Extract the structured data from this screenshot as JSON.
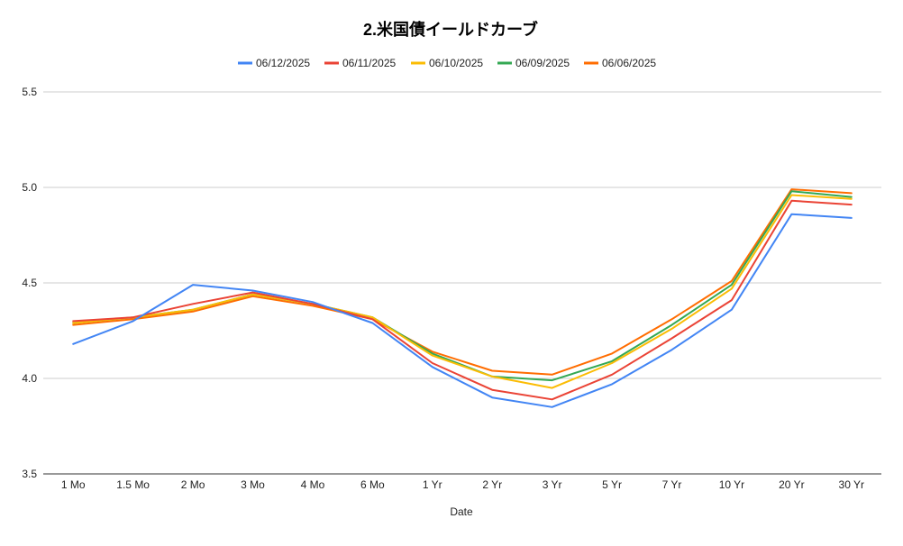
{
  "chart_data": {
    "type": "line",
    "title": "2.米国債イールドカーブ",
    "xlabel": "Date",
    "ylabel": "",
    "ylim": [
      3.5,
      5.5
    ],
    "yticks": [
      "3.5",
      "4.0",
      "4.5",
      "5.0",
      "5.5"
    ],
    "ytick_values": [
      3.5,
      4.0,
      4.5,
      5.0,
      5.5
    ],
    "grid": true,
    "legend_position": "top",
    "categories": [
      "1 Mo",
      "1.5 Mo",
      "2 Mo",
      "3 Mo",
      "4 Mo",
      "6 Mo",
      "1 Yr",
      "2 Yr",
      "3 Yr",
      "5 Yr",
      "7 Yr",
      "10 Yr",
      "20 Yr",
      "30 Yr"
    ],
    "series": [
      {
        "name": "06/12/2025",
        "color": "#4285f4",
        "values": [
          4.18,
          4.3,
          4.49,
          4.46,
          4.4,
          4.29,
          4.06,
          3.9,
          3.85,
          3.97,
          4.15,
          4.36,
          4.86,
          4.84
        ]
      },
      {
        "name": "06/11/2025",
        "color": "#ea4335",
        "values": [
          4.3,
          4.32,
          4.39,
          4.45,
          4.39,
          4.31,
          4.08,
          3.94,
          3.89,
          4.02,
          4.21,
          4.41,
          4.93,
          4.91
        ]
      },
      {
        "name": "06/10/2025",
        "color": "#fbbc04",
        "values": [
          4.29,
          4.32,
          4.36,
          4.44,
          4.39,
          4.32,
          4.12,
          4.01,
          3.95,
          4.08,
          4.26,
          4.47,
          4.96,
          4.94
        ]
      },
      {
        "name": "06/09/2025",
        "color": "#34a853",
        "values": [
          4.29,
          4.32,
          4.36,
          4.44,
          4.39,
          4.32,
          4.13,
          4.01,
          3.99,
          4.09,
          4.28,
          4.49,
          4.98,
          4.95
        ]
      },
      {
        "name": "06/06/2025",
        "color": "#ff6d01",
        "values": [
          4.28,
          4.31,
          4.35,
          4.43,
          4.38,
          4.31,
          4.14,
          4.04,
          4.02,
          4.13,
          4.31,
          4.51,
          4.99,
          4.97
        ]
      }
    ]
  }
}
